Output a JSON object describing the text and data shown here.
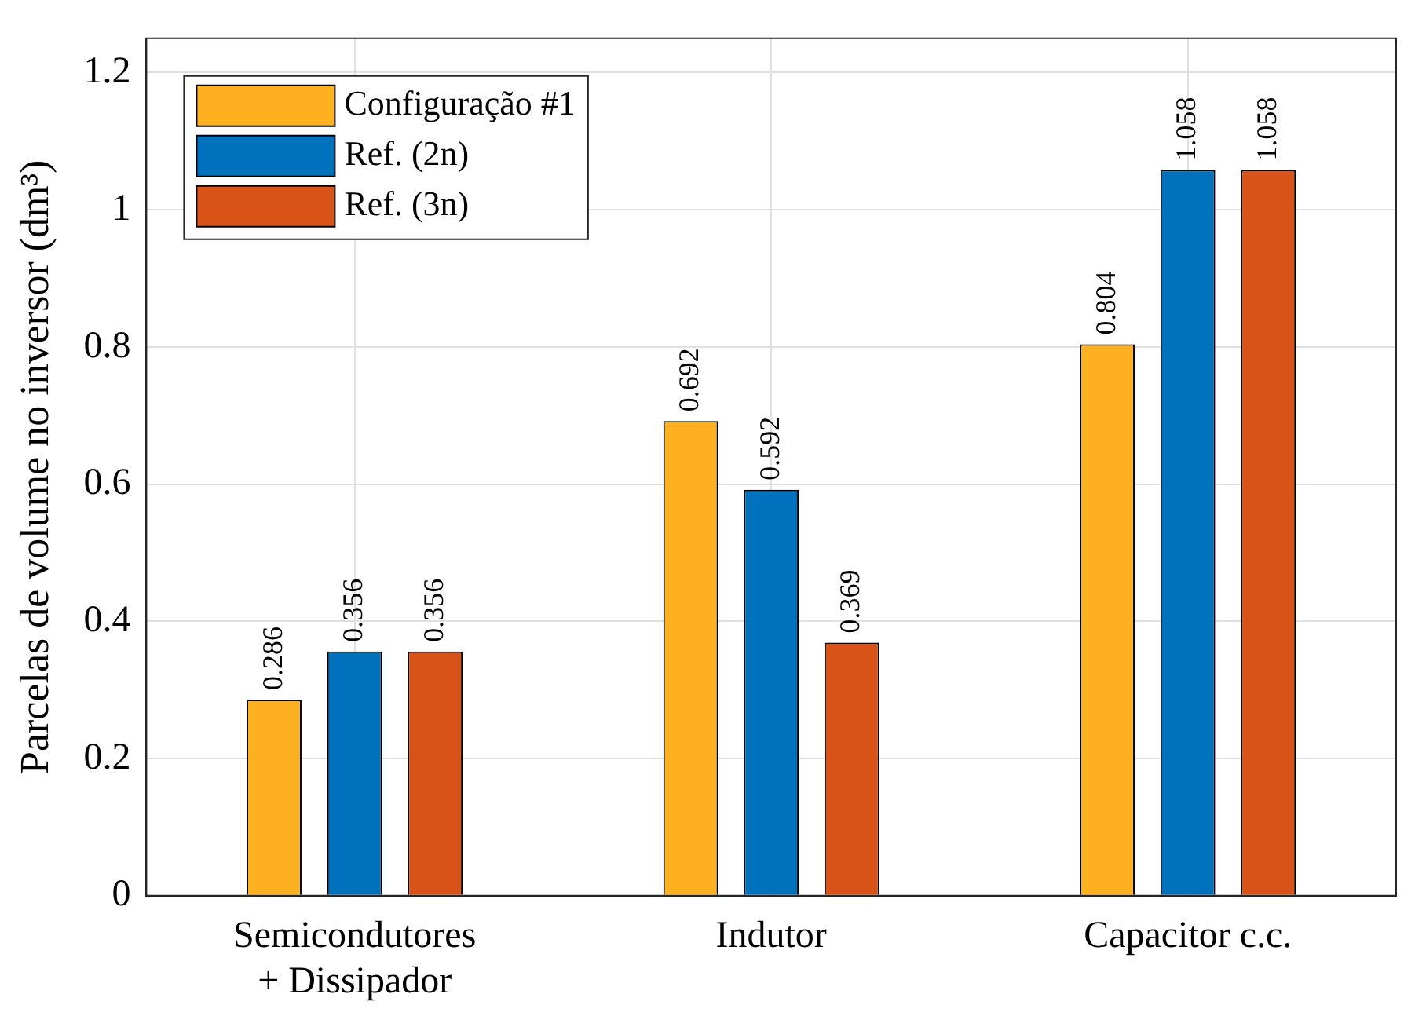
{
  "chart_data": {
    "type": "bar",
    "categories": [
      "Semicondutores + Dissipador",
      "Indutor",
      "Capacitor c.c."
    ],
    "ylabel": "Parcelas de volume no inversor (dm³)",
    "series": [
      {
        "name": "Configuração #1",
        "color": "#fdb120",
        "values": [
          0.286,
          0.692,
          0.804
        ]
      },
      {
        "name": "Ref. (2n)",
        "color": "#0072bd",
        "values": [
          0.356,
          0.592,
          1.058
        ]
      },
      {
        "name": "Ref. (3n)",
        "color": "#d95319",
        "values": [
          0.356,
          0.369,
          1.058
        ]
      }
    ],
    "ylim": [
      0,
      1.25
    ],
    "yticks": [
      0,
      0.2,
      0.4,
      0.6,
      0.8,
      1,
      1.2
    ],
    "grid": true,
    "legend": "top left",
    "data_labels": true
  }
}
